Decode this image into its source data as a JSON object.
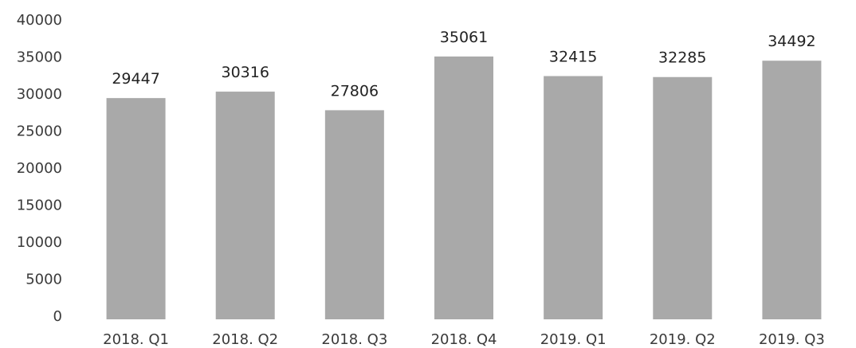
{
  "chart_data": {
    "type": "bar",
    "categories": [
      "2018. Q1",
      "2018. Q2",
      "2018. Q3",
      "2018. Q4",
      "2019. Q1",
      "2019. Q2",
      "2019. Q3"
    ],
    "values": [
      29447,
      30316,
      27806,
      35061,
      32415,
      32285,
      34492
    ],
    "data_labels": [
      "29447",
      "30316",
      "27806",
      "35061",
      "32415",
      "32285",
      "34492"
    ],
    "y_ticks": [
      0,
      5000,
      10000,
      15000,
      20000,
      25000,
      30000,
      35000,
      40000
    ],
    "ylim": [
      0,
      40000
    ],
    "title": "",
    "xlabel": "",
    "ylabel": "",
    "grid": false,
    "legend": "none",
    "bar_color": "#a9a9a9"
  }
}
